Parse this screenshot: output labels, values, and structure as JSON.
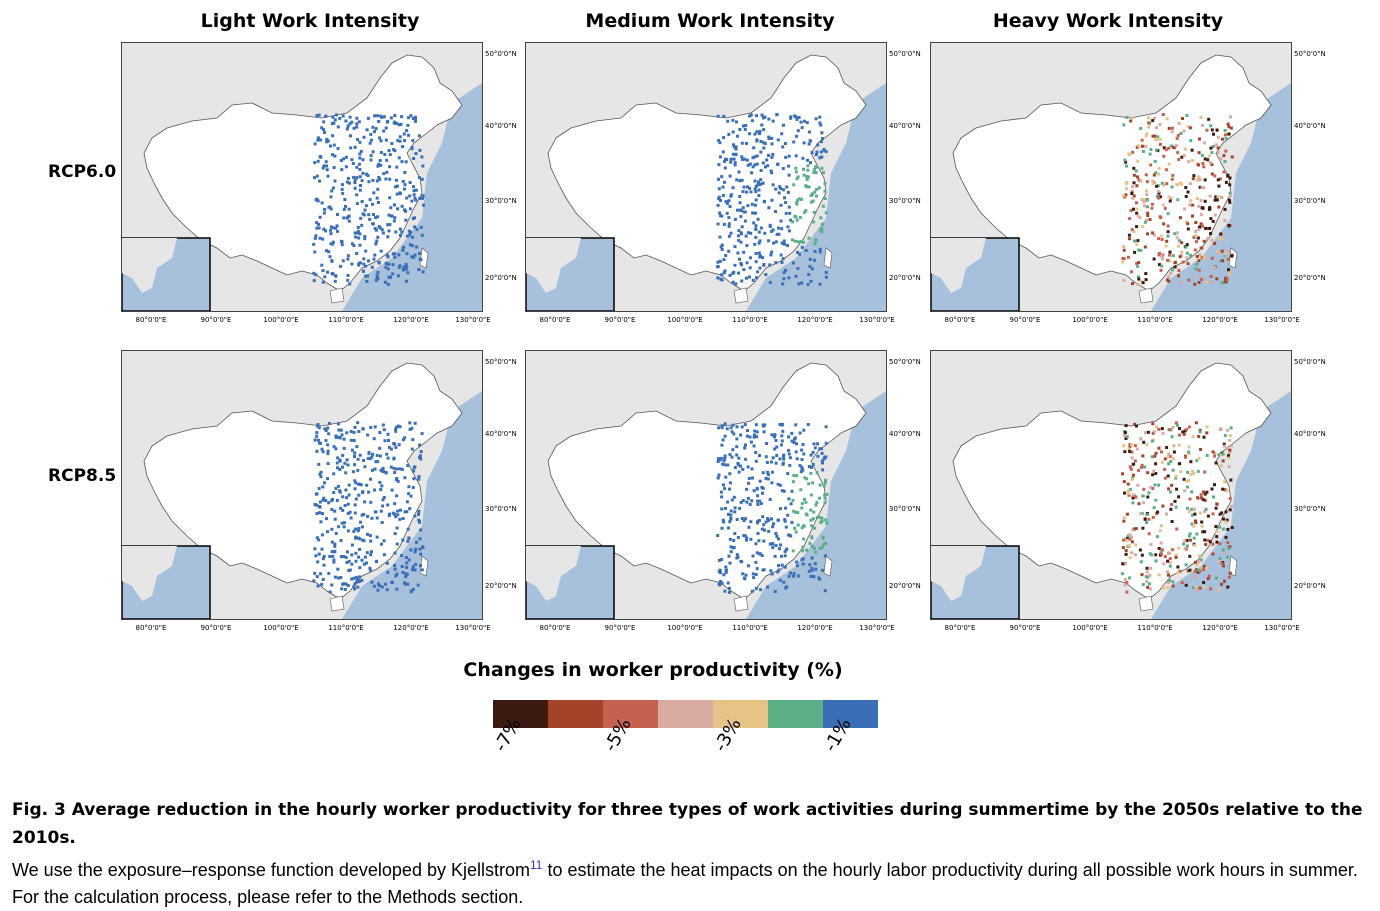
{
  "columns": [
    "Light Work Intensity",
    "Medium Work Intensity",
    "Heavy Work Intensity"
  ],
  "rows": [
    "RCP6.0",
    "RCP8.5"
  ],
  "lat_labels": [
    "50°0'0\"N",
    "40°0'0\"N",
    "30°0'0\"N",
    "20°0'0\"N"
  ],
  "lon_labels": [
    "80°0'0\"E",
    "90°0'0\"E",
    "100°0'0\"E",
    "110°0'0\"E",
    "120°0'0\"E",
    "130°0'0\"E"
  ],
  "legend": {
    "title": "Changes in worker productivity (%)",
    "colors": [
      "#3b1a12",
      "#a3442a",
      "#c7614f",
      "#d8aaa1",
      "#e6c488",
      "#5aaf87",
      "#3a6fb5"
    ],
    "ticks": [
      "-7%",
      "-5%",
      "-3%",
      "-1%"
    ]
  },
  "caption": {
    "bold": "Fig. 3 Average reduction in the hourly worker productivity for three types of work activities during summertime by the 2050s relative to the 2010s.",
    "text_before": "We use the exposure–response function developed by Kjellstrom",
    "cite": "11",
    "text_after": " to estimate the heat impacts on the hourly labor productivity during all possible work hours in summer. For the calculation process, please refer to the Methods section."
  },
  "colors": {
    "ocean": "#a7c0dc",
    "land_other": "#e6e6e6",
    "china": "#ffffff"
  }
}
